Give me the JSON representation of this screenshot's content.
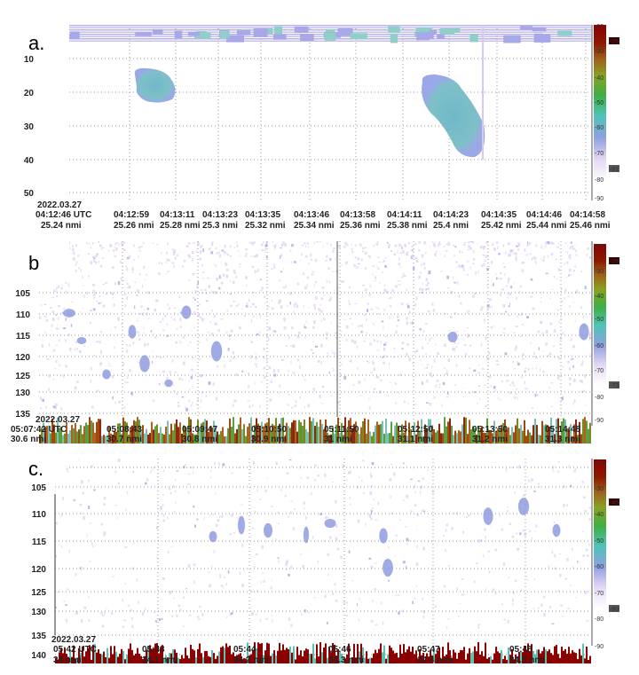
{
  "chart_data": [
    {
      "type": "heatmap",
      "panel_label": "a.",
      "date": "2022.03.27",
      "time_ticks": [
        "04:12:46 UTC",
        "04:12:59",
        "04:13:11",
        "04:13:23",
        "04:13:35",
        "04:13:46",
        "04:13:58",
        "04:14:11",
        "04:14:23",
        "04:14:35",
        "04:14:46",
        "04:14:58"
      ],
      "distance_ticks": [
        "25.24 nmi",
        "25.26 nmi",
        "25.28 nmi",
        "25.3 nmi",
        "25.32 nmi",
        "25.34 nmi",
        "25.36 nmi",
        "25.38 nmi",
        "25.4 nmi",
        "25.42 nmi",
        "25.44 nmi",
        "25.46 nmi"
      ],
      "y_ticks": [
        "10",
        "20",
        "30",
        "40",
        "50"
      ],
      "ylim": [
        0,
        50
      ],
      "colorbar_ticks": [
        "-20",
        "-30",
        "-40",
        "-50",
        "-60",
        "-70",
        "-80",
        "-90"
      ],
      "colorbar_markers": [
        "-25",
        "-81"
      ],
      "grid": true
    },
    {
      "type": "heatmap",
      "panel_label": "b.",
      "date": "2022.03.27",
      "time_ticks": [
        "05:07:42 UTC",
        "05:08:43",
        "05:09:47",
        "05:10:50",
        "05:11:50",
        "05:12:50",
        "05:13:50",
        "05:14:48"
      ],
      "distance_ticks": [
        "30.6 nmi",
        "30.7 nmi",
        "30.8 nmi",
        "30.9 nmi",
        "31 nmi",
        "31.1 nmi",
        "31.2 nmi",
        "31.3 nmi"
      ],
      "y_ticks": [
        "105",
        "110",
        "115",
        "120",
        "125",
        "130",
        "135"
      ],
      "ylim": [
        100,
        137
      ],
      "colorbar_ticks": [
        "-20",
        "-30",
        "-40",
        "-50",
        "-60",
        "-70",
        "-80",
        "-90"
      ],
      "colorbar_markers": [
        "-29",
        "-73"
      ],
      "grid": true
    },
    {
      "type": "heatmap",
      "panel_label": "c.",
      "date": "2022.03.27",
      "time_ticks": [
        "05:42 UTC",
        "05:43",
        "05:44",
        "05:46",
        "05:47",
        "05:48"
      ],
      "distance_ticks": [
        "34 nmi",
        "34.1 nmi",
        "34.2 nmi",
        "34.3 nmi",
        "34.4 nmi",
        "34.5 nmi"
      ],
      "y_ticks": [
        "105",
        "110",
        "115",
        "120",
        "125",
        "130",
        "135",
        "140"
      ],
      "ylim": [
        100,
        141
      ],
      "colorbar_ticks": [
        "-20",
        "-30",
        "-40",
        "-50",
        "-60",
        "-70",
        "-80",
        "-90"
      ],
      "colorbar_markers": [
        "-45",
        "-80"
      ],
      "grid": true
    }
  ],
  "colors": {
    "colormap": [
      "#8b0000",
      "#a0522d",
      "#9a9a1a",
      "#3cb043",
      "#4fc3b8",
      "#8ea0e0",
      "#e6d8f5",
      "#ffffff"
    ]
  }
}
